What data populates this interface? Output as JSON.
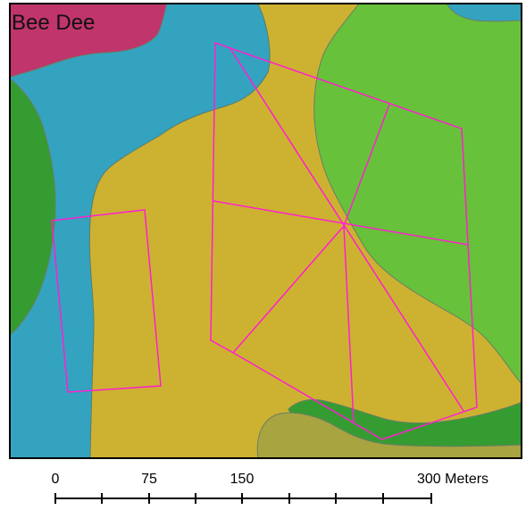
{
  "map": {
    "title": "Bee Dee",
    "colors": {
      "blue": "#33a3bf",
      "yellow": "#cdb231",
      "light_green": "#67c13a",
      "dark_green": "#359c32",
      "olive": "#a8a43f",
      "magenta": "#c0356b",
      "outline": "#ff1fcf",
      "boundary": "#6c7d66"
    }
  },
  "scale_bar": {
    "labels": [
      "0",
      "75",
      "150",
      "300 Meters"
    ]
  }
}
